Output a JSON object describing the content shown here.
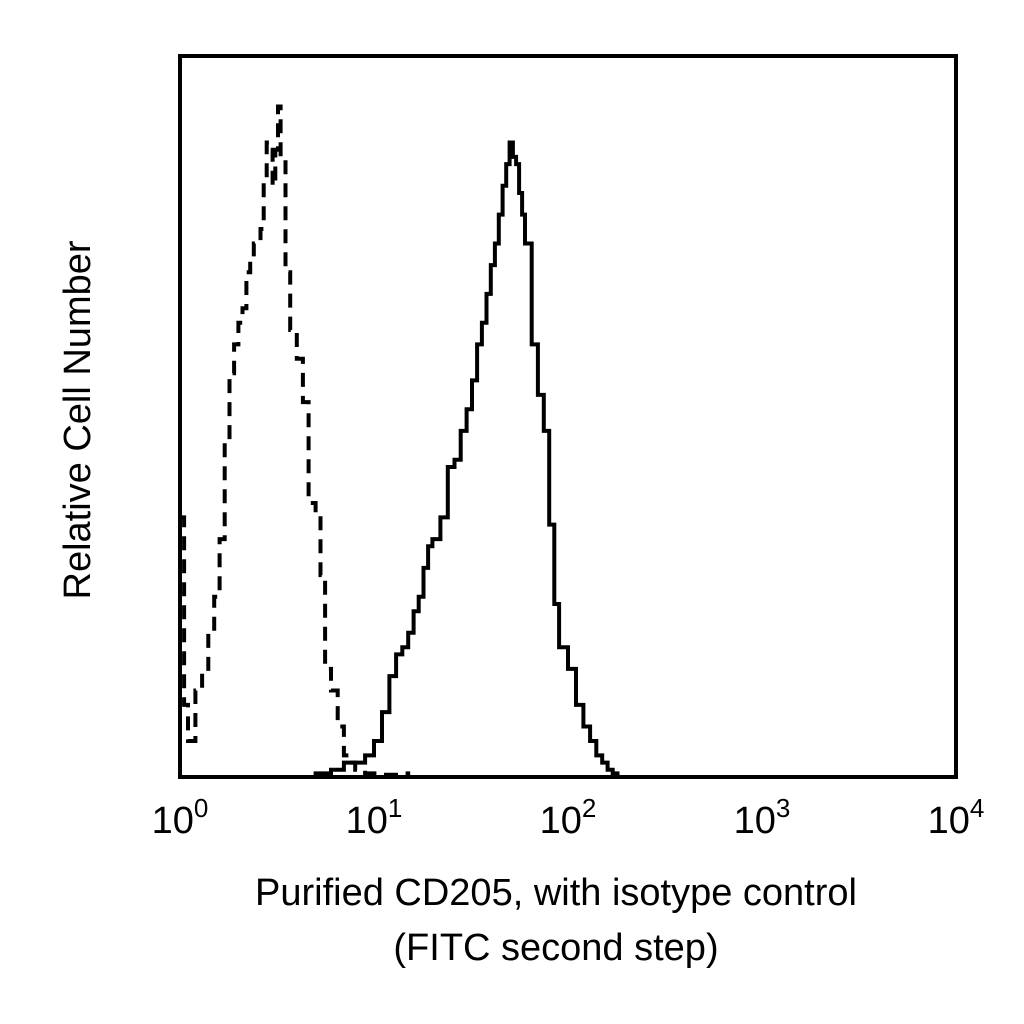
{
  "chart_data": {
    "type": "line",
    "x_scale": "log",
    "xlim": [
      1,
      10000
    ],
    "x_ticks": [
      {
        "value": 1,
        "base": "10",
        "exp": "0"
      },
      {
        "value": 10,
        "base": "10",
        "exp": "1"
      },
      {
        "value": 100,
        "base": "10",
        "exp": "2"
      },
      {
        "value": 1000,
        "base": "10",
        "exp": "3"
      },
      {
        "value": 10000,
        "base": "10",
        "exp": "4"
      }
    ],
    "xlabel_line1": "Purified CD205, with isotype control",
    "xlabel_line2": "(FITC second step)",
    "ylabel": "Relative Cell Number",
    "ylim": [
      0,
      100
    ],
    "y_ticks_shown": false,
    "grid": false,
    "legend": "none",
    "series": [
      {
        "style": "dashed",
        "color": "#000000",
        "x": [
          1.0,
          1.05,
          1.1,
          1.2,
          1.3,
          1.4,
          1.5,
          1.6,
          1.7,
          1.8,
          1.9,
          2.0,
          2.1,
          2.2,
          2.3,
          2.4,
          2.5,
          2.6,
          2.7,
          2.8,
          2.9,
          3.0,
          3.1,
          3.2,
          3.3,
          3.5,
          3.7,
          4.0,
          4.3,
          4.6,
          5.0,
          5.3,
          5.6,
          6.0,
          6.5,
          7.0,
          7.5,
          8.0,
          8.5,
          9.0,
          10.0,
          11.0,
          12.0,
          14.0,
          15.0
        ],
        "values": [
          36,
          10,
          5,
          12,
          15,
          20,
          25,
          33,
          46,
          56,
          60,
          63,
          65,
          70,
          72,
          74,
          74,
          76,
          83,
          88,
          87,
          82,
          87,
          93,
          86,
          70,
          62,
          58,
          52,
          38,
          37,
          28,
          15,
          12,
          7,
          3,
          2,
          1,
          1,
          0.5,
          0.5,
          0.3,
          0.3,
          0.5,
          0
        ]
      },
      {
        "style": "solid",
        "color": "#000000",
        "x": [
          1.0,
          2.0,
          3.0,
          4.0,
          5.0,
          6.0,
          7.0,
          8.0,
          9.0,
          10.0,
          11.0,
          12.0,
          13.0,
          14.0,
          15.0,
          16.0,
          17.0,
          18.0,
          19.0,
          20.0,
          22.0,
          24.0,
          26.0,
          28.0,
          30.0,
          32.0,
          34.0,
          36.0,
          38.0,
          40.0,
          42.0,
          44.0,
          46.0,
          48.0,
          50.0,
          52.0,
          54.0,
          56.0,
          58.0,
          60.0,
          65.0,
          70.0,
          75.0,
          80.0,
          85.0,
          90.0,
          100.0,
          110.0,
          120.0,
          130.0,
          140.0,
          150.0,
          160.0,
          170.0,
          180.0,
          190.0
        ],
        "values": [
          0,
          0,
          0,
          0,
          0.5,
          1,
          2,
          2,
          3,
          5,
          9,
          14,
          17,
          18,
          20,
          23,
          25,
          29,
          32,
          33,
          36,
          43,
          44,
          48,
          51,
          55,
          60,
          63,
          67,
          71,
          74,
          78,
          82,
          85,
          88,
          86,
          85,
          81,
          78,
          74,
          60,
          53,
          48,
          35,
          24,
          18,
          15,
          10,
          7,
          5,
          3,
          2,
          1,
          0.5,
          0,
          0
        ]
      }
    ]
  }
}
